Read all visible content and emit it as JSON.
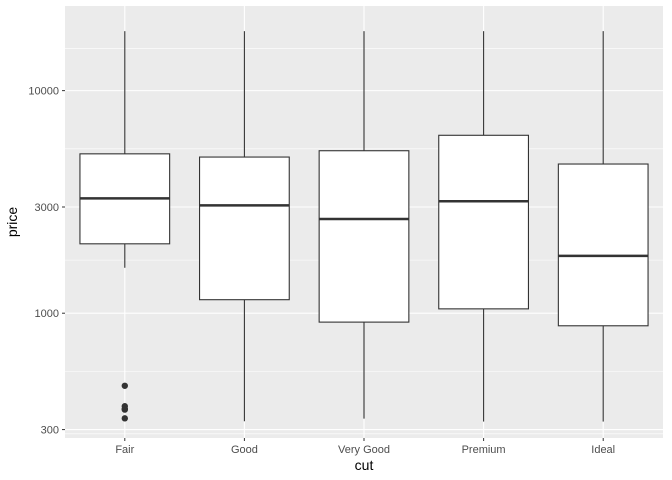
{
  "chart_data": {
    "type": "boxplot",
    "title": "",
    "xlabel": "cut",
    "ylabel": "price",
    "y_scale": "log10",
    "ylim": [
      275,
      24000
    ],
    "y_ticks": [
      300,
      1000,
      3000,
      10000
    ],
    "y_tick_labels": [
      "300",
      "1000",
      "3000",
      "10000"
    ],
    "categories": [
      "Fair",
      "Good",
      "Very Good",
      "Premium",
      "Ideal"
    ],
    "boxes": [
      {
        "category": "Fair",
        "lower_whisker": 1600,
        "q1": 2050,
        "median": 3280,
        "q3": 5200,
        "upper_whisker": 18500,
        "outliers": [
          337,
          369,
          371,
          382,
          472
        ]
      },
      {
        "category": "Good",
        "lower_whisker": 327,
        "q1": 1150,
        "median": 3050,
        "q3": 5030,
        "upper_whisker": 18500,
        "outliers": []
      },
      {
        "category": "Very Good",
        "lower_whisker": 336,
        "q1": 912,
        "median": 2650,
        "q3": 5370,
        "upper_whisker": 18500,
        "outliers": []
      },
      {
        "category": "Premium",
        "lower_whisker": 326,
        "q1": 1046,
        "median": 3185,
        "q3": 6300,
        "upper_whisker": 18500,
        "outliers": []
      },
      {
        "category": "Ideal",
        "lower_whisker": 326,
        "q1": 878,
        "median": 1810,
        "q3": 4680,
        "upper_whisker": 18500,
        "outliers": []
      }
    ],
    "grid": true,
    "legend": "none",
    "colors": {
      "panel_background": "#ebebeb",
      "grid_major": "#ffffff",
      "box_fill": "#ffffff",
      "box_stroke": "#333333",
      "outlier": "#333333",
      "tick_text": "#4d4d4d",
      "axis_title": "#000000"
    }
  }
}
